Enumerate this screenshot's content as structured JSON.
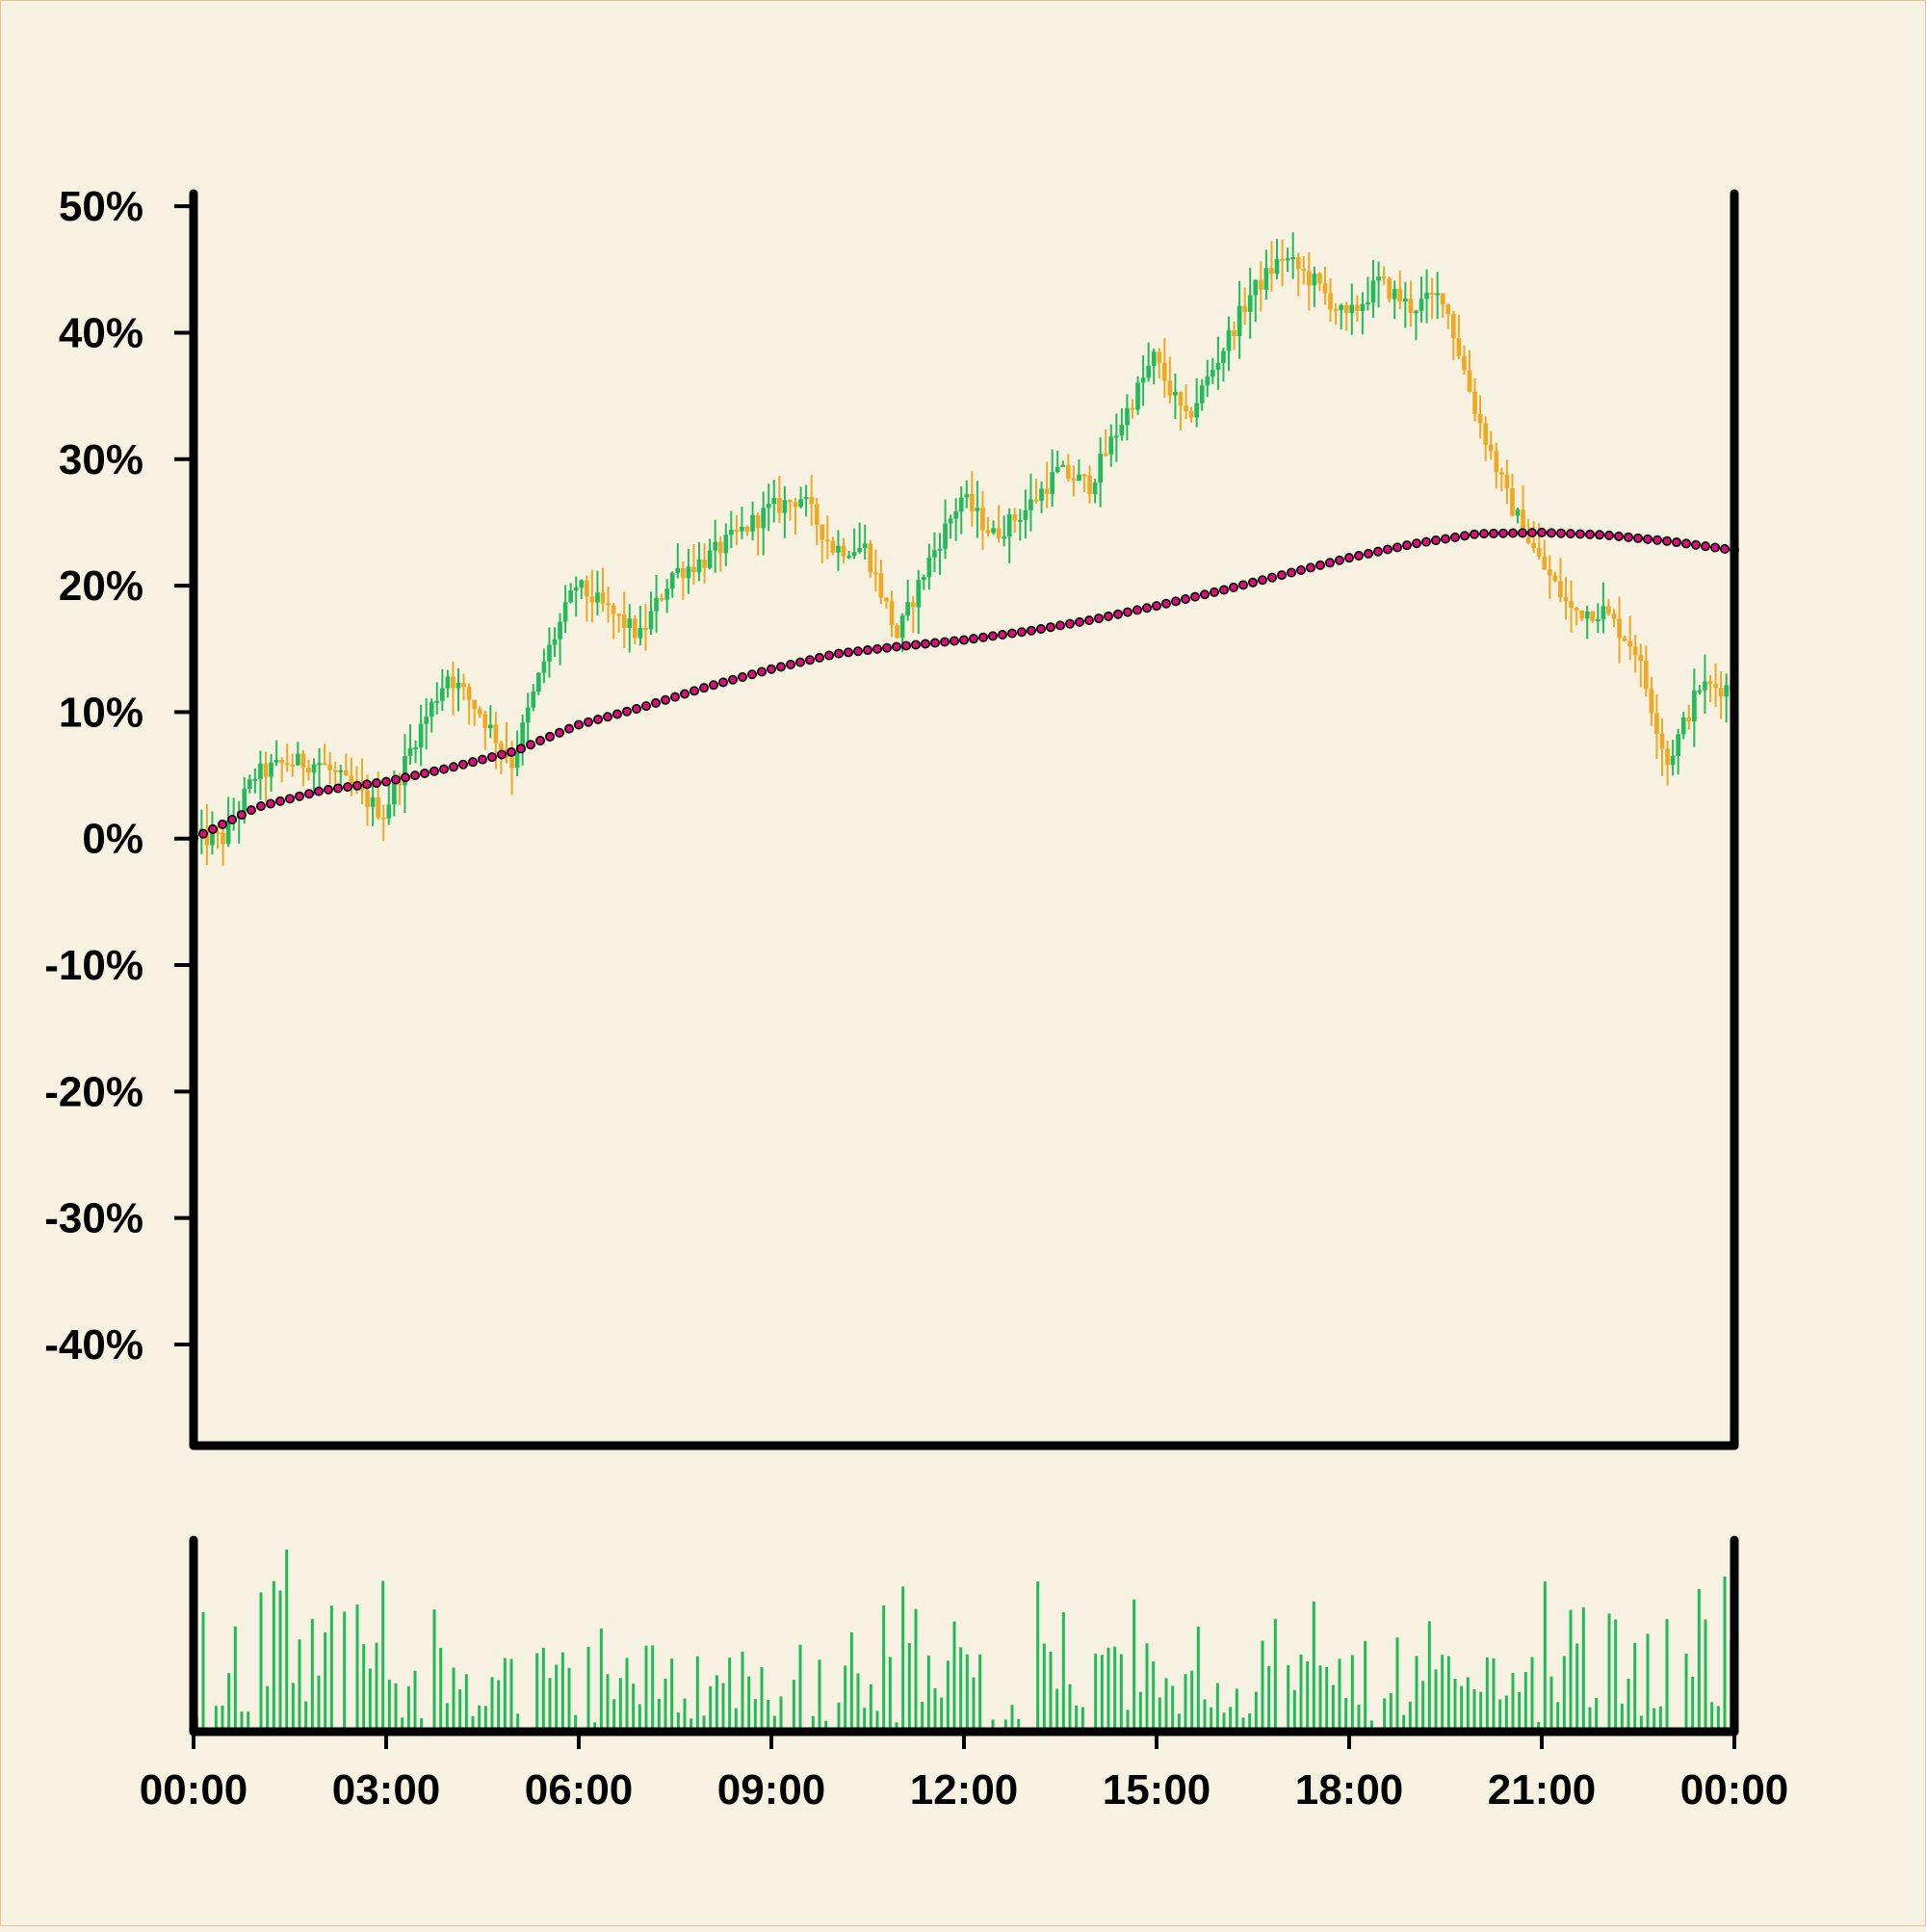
{
  "chart_data": {
    "type": "candlestick",
    "price_panel": {
      "ylabel_format": "percent",
      "ylim": [
        -48,
        51
      ],
      "yticks": [
        "50%",
        "40%",
        "30%",
        "20%",
        "10%",
        "0%",
        "-10%",
        "-20%",
        "-30%",
        "-40%"
      ],
      "ytick_values": [
        50,
        40,
        30,
        20,
        10,
        0,
        -10,
        -20,
        -30,
        -40
      ],
      "candle_series": {
        "description": "percent change vs start, close of each 5-minute bar",
        "up_color": "#22bb5b",
        "down_color": "#f0a823",
        "x_hours": [
          0,
          0.5,
          1,
          1.5,
          2,
          2.5,
          3,
          3.5,
          4,
          4.5,
          5,
          5.5,
          6,
          6.5,
          7,
          7.5,
          8,
          8.5,
          9,
          9.5,
          10,
          10.5,
          11,
          11.5,
          12,
          12.5,
          13,
          13.5,
          14,
          14.5,
          15,
          15.5,
          16,
          16.5,
          17,
          17.5,
          18,
          18.5,
          19,
          19.5,
          20,
          20.5,
          21,
          21.5,
          22,
          22.5,
          23,
          23.5,
          24
        ],
        "close": [
          0,
          0,
          5,
          6,
          6,
          4,
          2,
          8,
          13,
          10,
          6,
          14,
          20,
          18,
          16,
          21,
          22,
          24,
          26,
          27,
          23,
          23,
          16,
          22,
          27,
          24,
          26,
          29,
          28,
          33,
          38,
          33,
          38,
          43,
          46,
          44,
          41,
          44,
          42,
          43,
          34,
          27,
          22,
          18,
          18,
          15,
          6,
          12,
          12
        ]
      },
      "moving_average": {
        "color": "#d6127a",
        "style": "dotted",
        "x_hours": [
          0,
          1,
          2,
          3,
          4,
          5,
          6,
          7,
          8,
          9,
          10,
          11,
          12,
          13,
          14,
          15,
          16,
          17,
          18,
          19,
          20,
          21,
          22,
          23,
          24
        ],
        "values": [
          0,
          2.5,
          3.8,
          4.5,
          5.6,
          6.9,
          9,
          10.4,
          12,
          13.4,
          14.6,
          15.2,
          15.7,
          16.4,
          17.3,
          18.4,
          19.6,
          20.9,
          22.2,
          23.3,
          24.1,
          24.2,
          24.0,
          23.5,
          22.8
        ]
      }
    },
    "volume_panel": {
      "color": "#22bb5b",
      "ylim": [
        0,
        1
      ],
      "description": "relative volume per 5-minute bar"
    },
    "x_axis": {
      "tick_labels": [
        "00:00",
        "03:00",
        "06:00",
        "09:00",
        "12:00",
        "15:00",
        "18:00",
        "21:00",
        "00:00"
      ],
      "range_hours": [
        0,
        24
      ]
    }
  }
}
